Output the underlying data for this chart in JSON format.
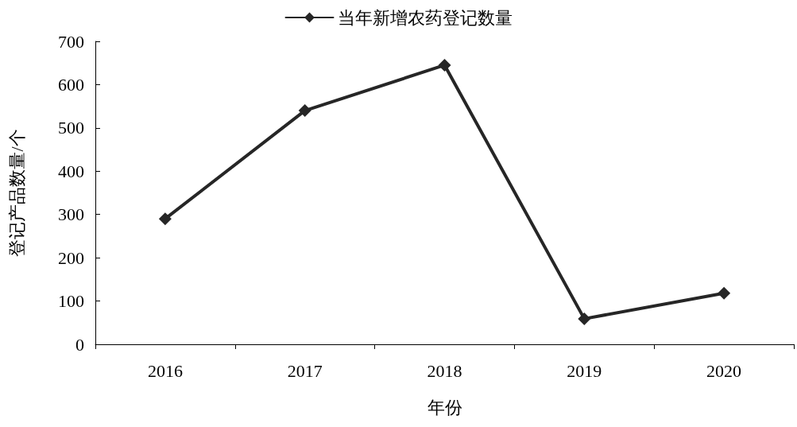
{
  "chart_data": {
    "type": "line",
    "xlabel": "年份",
    "ylabel": "登记产品数量/个",
    "categories": [
      "2016",
      "2017",
      "2018",
      "2019",
      "2020"
    ],
    "series": [
      {
        "name": "当年新增农药登记数量",
        "color": "#262626",
        "values": [
          290,
          540,
          645,
          59,
          118
        ]
      }
    ],
    "ylim": [
      0,
      700
    ],
    "yticks": [
      0,
      100,
      200,
      300,
      400,
      500,
      600,
      700
    ],
    "grid": false,
    "legend": "top",
    "marker": "diamond",
    "line_style": "solid"
  }
}
